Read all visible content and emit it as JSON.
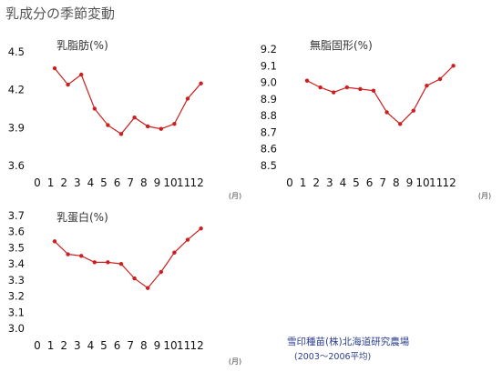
{
  "title": "乳成分の季節変動",
  "source": {
    "line1": "雪印種苗(株)北海道研究農場",
    "line2": "(2003～2006平均)"
  },
  "colors": {
    "line": "#cc1f1f",
    "axis": "#888888"
  },
  "chart_data": [
    {
      "type": "line",
      "title": "乳脂肪(%)",
      "x": [
        1,
        2,
        3,
        4,
        5,
        6,
        7,
        8,
        9,
        10,
        11,
        12
      ],
      "values": [
        4.37,
        4.24,
        4.32,
        4.05,
        3.92,
        3.85,
        3.98,
        3.91,
        3.89,
        3.93,
        4.13,
        4.25
      ],
      "ylim": [
        3.6,
        4.5
      ],
      "yticks": [
        "3.6",
        "3.9",
        "4.2",
        "4.5"
      ],
      "xticks": [
        "0",
        "1",
        "2",
        "3",
        "4",
        "5",
        "6",
        "7",
        "8",
        "9",
        "10",
        "11",
        "12"
      ],
      "xunit": "(月)"
    },
    {
      "type": "line",
      "title": "無脂固形(%)",
      "x": [
        1,
        2,
        3,
        4,
        5,
        6,
        7,
        8,
        9,
        10,
        11,
        12
      ],
      "values": [
        9.01,
        8.97,
        8.94,
        8.97,
        8.96,
        8.95,
        8.82,
        8.75,
        8.83,
        8.98,
        9.02,
        9.1
      ],
      "ylim": [
        8.5,
        9.2
      ],
      "yticks": [
        "8.5",
        "8.6",
        "8.7",
        "8.8",
        "8.9",
        "9.0",
        "9.1",
        "9.2"
      ],
      "xticks": [
        "0",
        "1",
        "2",
        "3",
        "4",
        "5",
        "6",
        "7",
        "8",
        "9",
        "10",
        "11",
        "12"
      ],
      "xunit": "(月)"
    },
    {
      "type": "line",
      "title": "乳蛋白(%)",
      "x": [
        1,
        2,
        3,
        4,
        5,
        6,
        7,
        8,
        9,
        10,
        11,
        12
      ],
      "values": [
        3.54,
        3.46,
        3.45,
        3.41,
        3.41,
        3.4,
        3.31,
        3.25,
        3.35,
        3.47,
        3.55,
        3.62
      ],
      "ylim": [
        3.0,
        3.7
      ],
      "yticks": [
        "3.0",
        "3.1",
        "3.2",
        "3.3",
        "3.4",
        "3.5",
        "3.6",
        "3.7"
      ],
      "xticks": [
        "0",
        "1",
        "2",
        "3",
        "4",
        "5",
        "6",
        "7",
        "8",
        "9",
        "10",
        "11",
        "12"
      ],
      "xunit": "(月)"
    }
  ]
}
